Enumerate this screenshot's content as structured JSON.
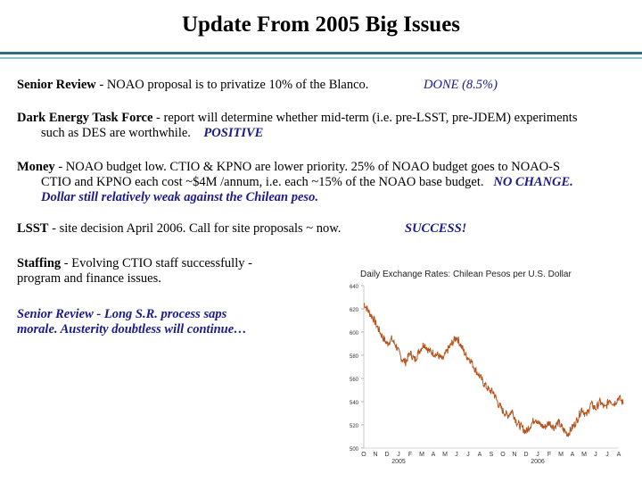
{
  "slide": {
    "title": "Update From 2005 Big Issues",
    "senior_review": {
      "label": "Senior Review",
      "text": " - NOAO proposal is to privatize 10% of the Blanco.",
      "status": "DONE (8.5%)"
    },
    "dark_energy": {
      "label": "Dark Energy Task Force",
      "text1": " - report will determine whether mid-term (i.e. pre-LSST, pre-JDEM) experiments",
      "text2": "such as DES are worthwhile.",
      "status": "POSITIVE"
    },
    "money": {
      "label": "Money",
      "text1": " - NOAO budget low. CTIO & KPNO are lower priority. 25% of NOAO budget goes to NOAO-S",
      "text2": "CTIO and KPNO each cost ~$4M /annum, i.e. each ~15% of the NOAO base budget.",
      "status1": "NO CHANGE.",
      "status2": "Dollar still relatively weak against the Chilean peso."
    },
    "lsst": {
      "label": "LSST",
      "text": " - site decision April 2006. Call for site proposals ~ now.",
      "status": "SUCCESS!"
    },
    "staffing": {
      "label": "Staffing",
      "text1": " - Evolving CTIO staff successfully -",
      "text2": "program and finance issues."
    },
    "senior_review_morale": {
      "line1": "Senior Review - Long S.R. process saps",
      "line2": "morale. Austerity doubtless will continue…"
    }
  },
  "chart_data": {
    "type": "line",
    "title": "Daily Exchange Rates: Chilean Pesos per U.S. Dollar",
    "y_ticks": [
      "640",
      "620",
      "600",
      "580",
      "560",
      "540",
      "520",
      "500"
    ],
    "ylim": [
      500,
      640
    ],
    "x_month_labels": [
      "O",
      "N",
      "D",
      "J",
      "F",
      "M",
      "A",
      "M",
      "J",
      "J",
      "A",
      "S",
      "O",
      "N",
      "D",
      "J",
      "F",
      "M",
      "A",
      "M",
      "J",
      "J",
      "A"
    ],
    "x_year_labels": [
      {
        "label": "2005",
        "month_index": 3
      },
      {
        "label": "2006",
        "month_index": 15
      }
    ],
    "series_color": "#b5521b",
    "anchors": [
      [
        0,
        625
      ],
      [
        0.4,
        618
      ],
      [
        0.8,
        612
      ],
      [
        1.2,
        604
      ],
      [
        1.6,
        596
      ],
      [
        2.0,
        590
      ],
      [
        2.4,
        594
      ],
      [
        2.8,
        588
      ],
      [
        3.2,
        578
      ],
      [
        3.6,
        574
      ],
      [
        4.0,
        582
      ],
      [
        4.4,
        576
      ],
      [
        4.8,
        584
      ],
      [
        5.2,
        590
      ],
      [
        5.6,
        584
      ],
      [
        6.0,
        582
      ],
      [
        6.4,
        580
      ],
      [
        6.8,
        576
      ],
      [
        7.2,
        584
      ],
      [
        7.6,
        590
      ],
      [
        8.0,
        596
      ],
      [
        8.4,
        588
      ],
      [
        8.8,
        580
      ],
      [
        9.2,
        576
      ],
      [
        9.6,
        568
      ],
      [
        10.0,
        562
      ],
      [
        10.4,
        555
      ],
      [
        10.8,
        550
      ],
      [
        11.2,
        548
      ],
      [
        11.6,
        538
      ],
      [
        12.0,
        532
      ],
      [
        12.4,
        528
      ],
      [
        12.8,
        532
      ],
      [
        13.2,
        522
      ],
      [
        13.6,
        518
      ],
      [
        14.0,
        514
      ],
      [
        14.4,
        520
      ],
      [
        14.8,
        526
      ],
      [
        15.2,
        520
      ],
      [
        15.6,
        518
      ],
      [
        16.0,
        522
      ],
      [
        16.4,
        518
      ],
      [
        16.8,
        522
      ],
      [
        17.2,
        516
      ],
      [
        17.6,
        512
      ],
      [
        18.0,
        518
      ],
      [
        18.4,
        524
      ],
      [
        18.8,
        534
      ],
      [
        19.2,
        528
      ],
      [
        19.6,
        538
      ],
      [
        20.0,
        534
      ],
      [
        20.4,
        540
      ],
      [
        20.8,
        534
      ],
      [
        21.2,
        542
      ],
      [
        21.6,
        538
      ],
      [
        22.0,
        544
      ],
      [
        22.4,
        538
      ]
    ]
  }
}
